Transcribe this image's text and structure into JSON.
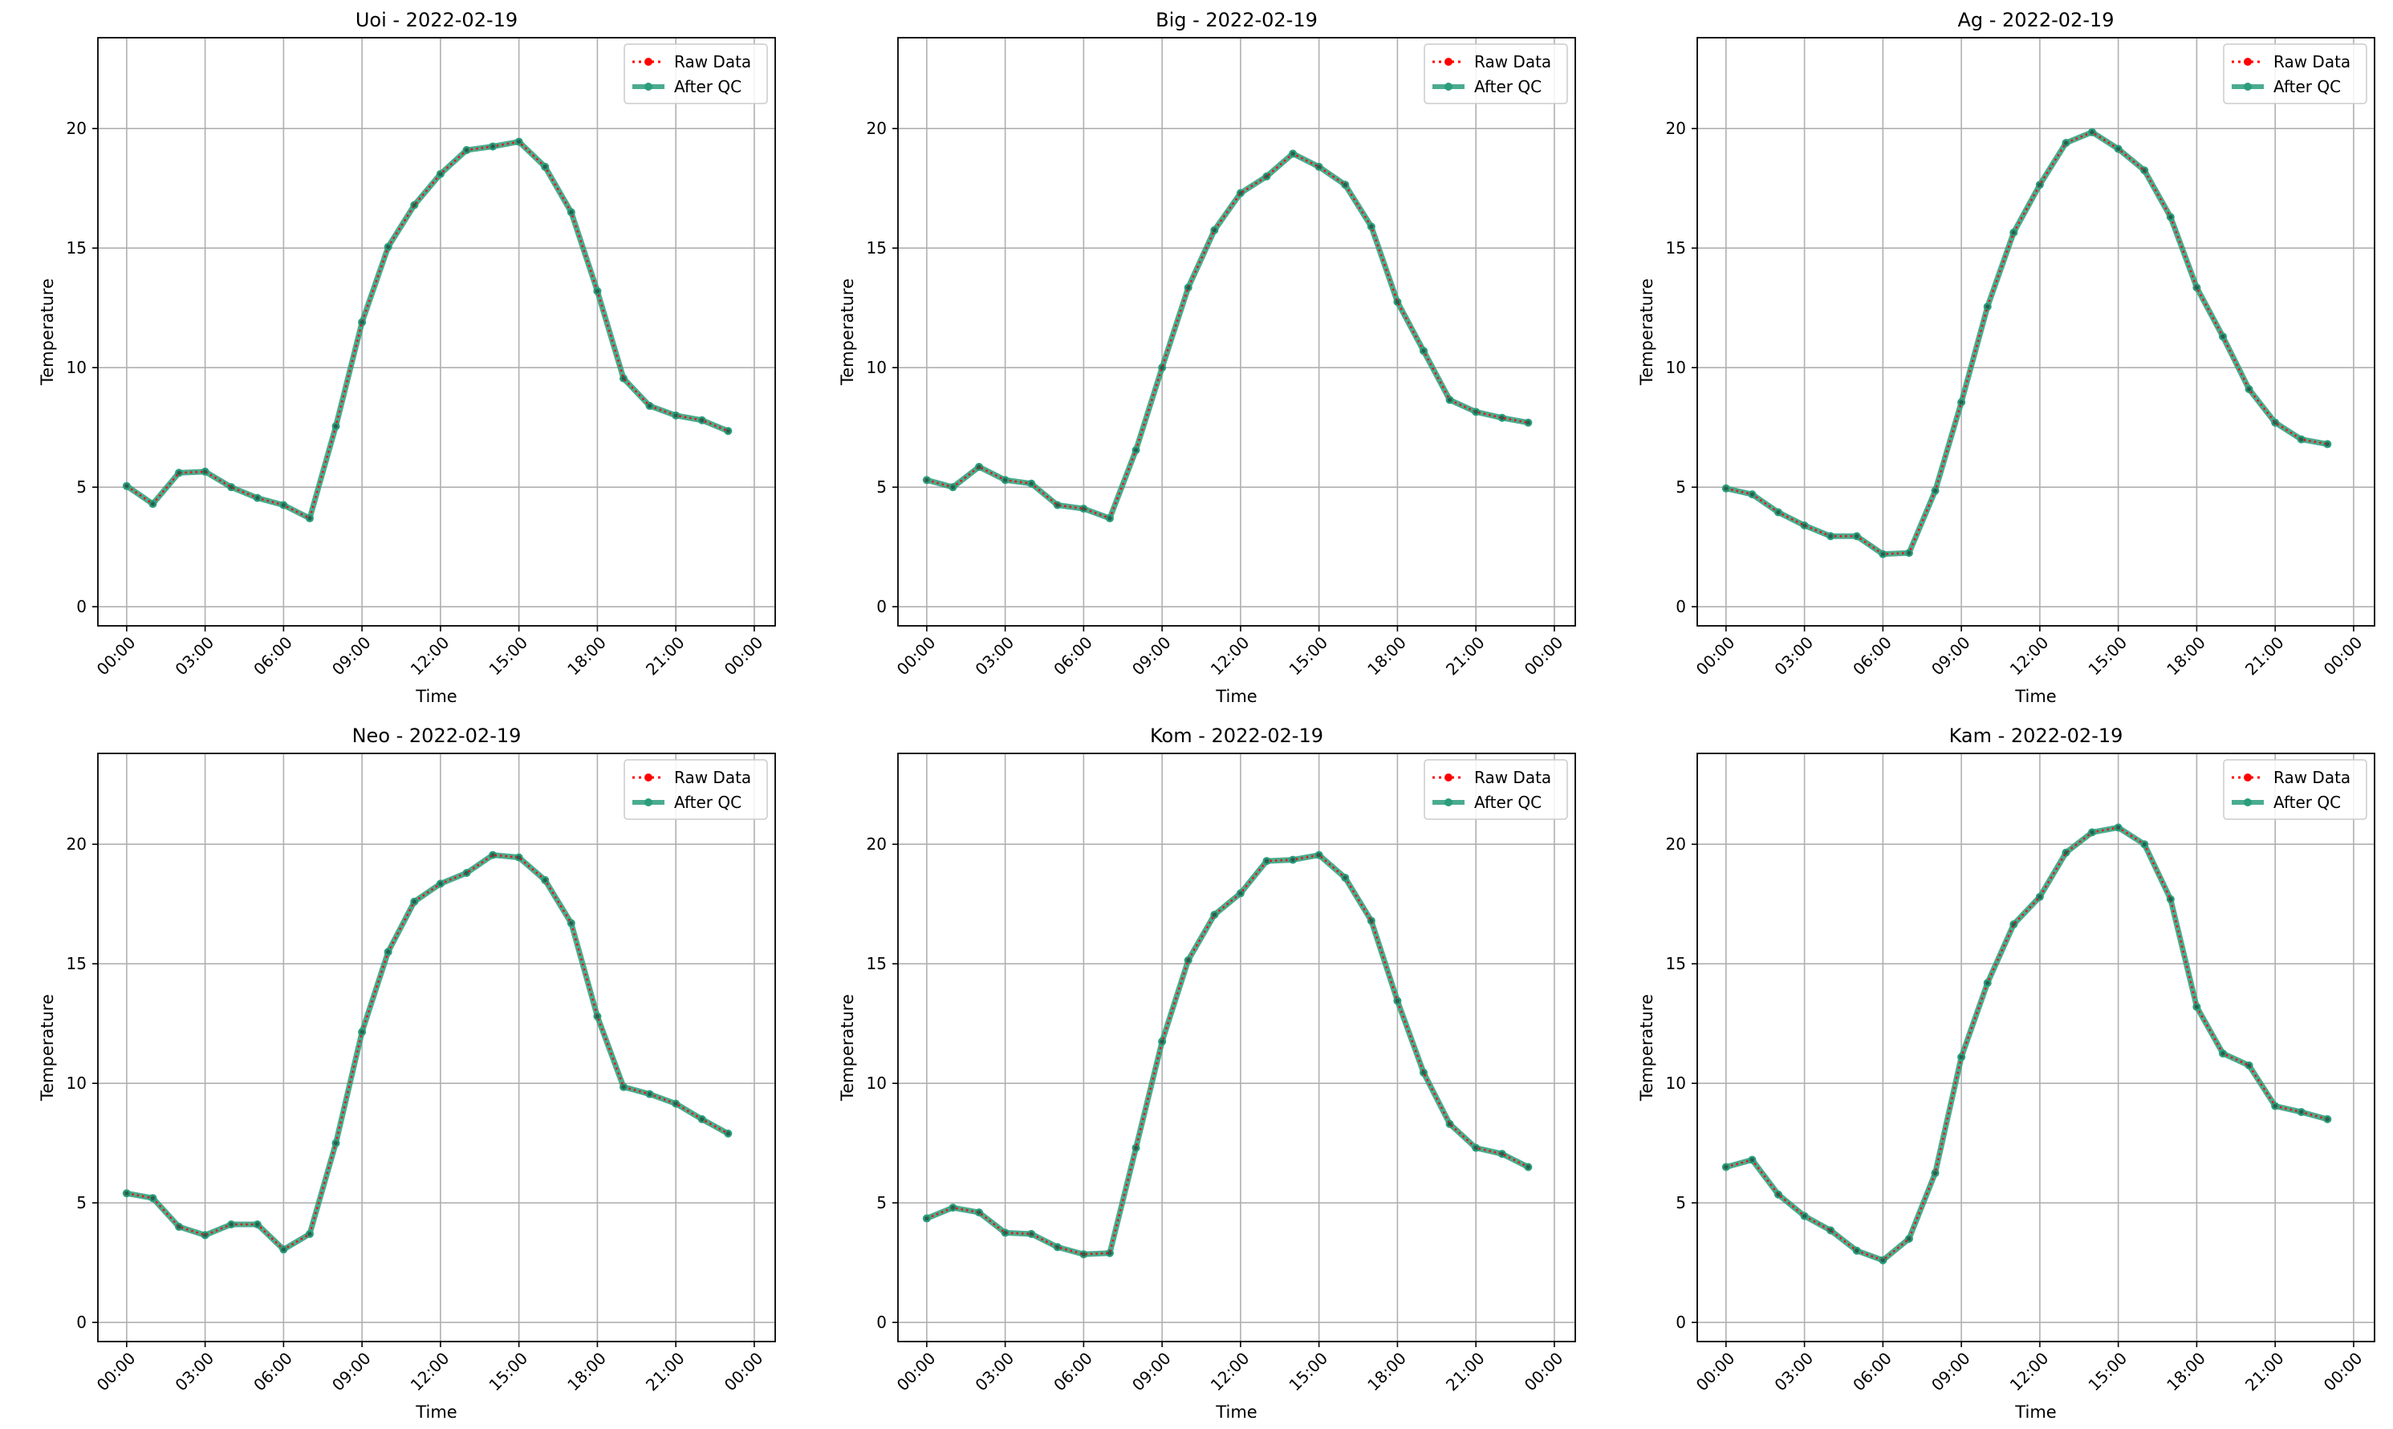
{
  "colors": {
    "raw": "#ff0000",
    "qc": "#2a9d7b",
    "grid": "#b0b0b0",
    "axes": "#000000"
  },
  "chart_data": [
    {
      "type": "line",
      "title": "Uoi - 2022-02-19",
      "xlabel": "Time",
      "ylabel": "Temperature",
      "x_tick_labels": [
        "00:00",
        "03:00",
        "06:00",
        "09:00",
        "12:00",
        "15:00",
        "18:00",
        "21:00",
        "00:00"
      ],
      "x_hours": [
        0,
        1,
        2,
        3,
        4,
        5,
        6,
        7,
        8,
        9,
        10,
        11,
        12,
        13,
        14,
        15,
        16,
        17,
        18,
        19,
        20,
        21,
        22,
        23
      ],
      "ylim": [
        -0.8,
        23.8
      ],
      "yticks": [
        0,
        5,
        10,
        15,
        20
      ],
      "grid": true,
      "legend": "upper right",
      "series": [
        {
          "name": "Raw Data",
          "style": "dotted",
          "values": [
            5.05,
            4.3,
            5.6,
            5.65,
            5.0,
            4.55,
            4.25,
            3.7,
            7.55,
            11.9,
            15.05,
            16.8,
            18.1,
            19.1,
            19.25,
            19.45,
            18.4,
            16.5,
            13.2,
            9.55,
            8.4,
            8.0,
            7.8,
            7.35
          ]
        },
        {
          "name": "After QC",
          "style": "solid",
          "values": [
            5.05,
            4.3,
            5.6,
            5.65,
            5.0,
            4.55,
            4.25,
            3.7,
            7.55,
            11.9,
            15.05,
            16.8,
            18.1,
            19.1,
            19.25,
            19.45,
            18.4,
            16.5,
            13.2,
            9.55,
            8.4,
            8.0,
            7.8,
            7.35
          ]
        }
      ]
    },
    {
      "type": "line",
      "title": "Big - 2022-02-19",
      "xlabel": "Time",
      "ylabel": "Temperature",
      "x_tick_labels": [
        "00:00",
        "03:00",
        "06:00",
        "09:00",
        "12:00",
        "15:00",
        "18:00",
        "21:00",
        "00:00"
      ],
      "x_hours": [
        0,
        1,
        2,
        3,
        4,
        5,
        6,
        7,
        8,
        9,
        10,
        11,
        12,
        13,
        14,
        15,
        16,
        17,
        18,
        19,
        20,
        21,
        22,
        23
      ],
      "ylim": [
        -0.8,
        23.8
      ],
      "yticks": [
        0,
        5,
        10,
        15,
        20
      ],
      "grid": true,
      "legend": "upper right",
      "series": [
        {
          "name": "Raw Data",
          "style": "dotted",
          "values": [
            5.3,
            5.0,
            5.85,
            5.3,
            5.15,
            4.25,
            4.1,
            3.7,
            6.55,
            10.0,
            13.35,
            15.75,
            17.3,
            18.0,
            18.95,
            18.4,
            17.65,
            15.9,
            12.75,
            10.7,
            8.65,
            8.15,
            7.9,
            7.7
          ]
        },
        {
          "name": "After QC",
          "style": "solid",
          "values": [
            5.3,
            5.0,
            5.85,
            5.3,
            5.15,
            4.25,
            4.1,
            3.7,
            6.55,
            10.0,
            13.35,
            15.75,
            17.3,
            18.0,
            18.95,
            18.4,
            17.65,
            15.9,
            12.75,
            10.7,
            8.65,
            8.15,
            7.9,
            7.7
          ]
        }
      ]
    },
    {
      "type": "line",
      "title": "Ag - 2022-02-19",
      "xlabel": "Time",
      "ylabel": "Temperature",
      "x_tick_labels": [
        "00:00",
        "03:00",
        "06:00",
        "09:00",
        "12:00",
        "15:00",
        "18:00",
        "21:00",
        "00:00"
      ],
      "x_hours": [
        0,
        1,
        2,
        3,
        4,
        5,
        6,
        7,
        8,
        9,
        10,
        11,
        12,
        13,
        14,
        15,
        16,
        17,
        18,
        19,
        20,
        21,
        22,
        23
      ],
      "ylim": [
        -0.8,
        23.8
      ],
      "yticks": [
        0,
        5,
        10,
        15,
        20
      ],
      "grid": true,
      "legend": "upper right",
      "series": [
        {
          "name": "Raw Data",
          "style": "dotted",
          "values": [
            4.95,
            4.7,
            3.95,
            3.4,
            2.95,
            2.95,
            2.2,
            2.25,
            4.85,
            8.55,
            12.55,
            15.65,
            17.65,
            19.4,
            19.85,
            19.15,
            18.25,
            16.3,
            13.35,
            11.3,
            9.1,
            7.7,
            7.0,
            6.8
          ]
        },
        {
          "name": "After QC",
          "style": "solid",
          "values": [
            4.95,
            4.7,
            3.95,
            3.4,
            2.95,
            2.95,
            2.2,
            2.25,
            4.85,
            8.55,
            12.55,
            15.65,
            17.65,
            19.4,
            19.85,
            19.15,
            18.25,
            16.3,
            13.35,
            11.3,
            9.1,
            7.7,
            7.0,
            6.8
          ]
        }
      ]
    },
    {
      "type": "line",
      "title": "Neo - 2022-02-19",
      "xlabel": "Time",
      "ylabel": "Temperature",
      "x_tick_labels": [
        "00:00",
        "03:00",
        "06:00",
        "09:00",
        "12:00",
        "15:00",
        "18:00",
        "21:00",
        "00:00"
      ],
      "x_hours": [
        0,
        1,
        2,
        3,
        4,
        5,
        6,
        7,
        8,
        9,
        10,
        11,
        12,
        13,
        14,
        15,
        16,
        17,
        18,
        19,
        20,
        21,
        22,
        23
      ],
      "ylim": [
        -0.8,
        23.8
      ],
      "yticks": [
        0,
        5,
        10,
        15,
        20
      ],
      "grid": true,
      "legend": "upper right",
      "series": [
        {
          "name": "Raw Data",
          "style": "dotted",
          "values": [
            5.4,
            5.2,
            4.0,
            3.65,
            4.1,
            4.1,
            3.05,
            3.7,
            7.5,
            12.15,
            15.5,
            17.6,
            18.35,
            18.8,
            19.55,
            19.45,
            18.5,
            16.7,
            12.8,
            9.85,
            9.55,
            9.15,
            8.5,
            7.9
          ]
        },
        {
          "name": "After QC",
          "style": "solid",
          "values": [
            5.4,
            5.2,
            4.0,
            3.65,
            4.1,
            4.1,
            3.05,
            3.7,
            7.5,
            12.15,
            15.5,
            17.6,
            18.35,
            18.8,
            19.55,
            19.45,
            18.5,
            16.7,
            12.8,
            9.85,
            9.55,
            9.15,
            8.5,
            7.9
          ]
        }
      ]
    },
    {
      "type": "line",
      "title": "Kom - 2022-02-19",
      "xlabel": "Time",
      "ylabel": "Temperature",
      "x_tick_labels": [
        "00:00",
        "03:00",
        "06:00",
        "09:00",
        "12:00",
        "15:00",
        "18:00",
        "21:00",
        "00:00"
      ],
      "x_hours": [
        0,
        1,
        2,
        3,
        4,
        5,
        6,
        7,
        8,
        9,
        10,
        11,
        12,
        13,
        14,
        15,
        16,
        17,
        18,
        19,
        20,
        21,
        22,
        23
      ],
      "ylim": [
        -0.8,
        23.8
      ],
      "yticks": [
        0,
        5,
        10,
        15,
        20
      ],
      "grid": true,
      "legend": "upper right",
      "series": [
        {
          "name": "Raw Data",
          "style": "dotted",
          "values": [
            4.35,
            4.8,
            4.6,
            3.75,
            3.7,
            3.15,
            2.85,
            2.9,
            7.3,
            11.75,
            15.15,
            17.05,
            17.95,
            19.3,
            19.35,
            19.55,
            18.6,
            16.8,
            13.45,
            10.45,
            8.3,
            7.3,
            7.05,
            6.5
          ]
        },
        {
          "name": "After QC",
          "style": "solid",
          "values": [
            4.35,
            4.8,
            4.6,
            3.75,
            3.7,
            3.15,
            2.85,
            2.9,
            7.3,
            11.75,
            15.15,
            17.05,
            17.95,
            19.3,
            19.35,
            19.55,
            18.6,
            16.8,
            13.45,
            10.45,
            8.3,
            7.3,
            7.05,
            6.5
          ]
        }
      ]
    },
    {
      "type": "line",
      "title": "Kam - 2022-02-19",
      "xlabel": "Time",
      "ylabel": "Temperature",
      "x_tick_labels": [
        "00:00",
        "03:00",
        "06:00",
        "09:00",
        "12:00",
        "15:00",
        "18:00",
        "21:00",
        "00:00"
      ],
      "x_hours": [
        0,
        1,
        2,
        3,
        4,
        5,
        6,
        7,
        8,
        9,
        10,
        11,
        12,
        13,
        14,
        15,
        16,
        17,
        18,
        19,
        20,
        21,
        22,
        23
      ],
      "ylim": [
        -0.8,
        23.8
      ],
      "yticks": [
        0,
        5,
        10,
        15,
        20
      ],
      "grid": true,
      "legend": "upper right",
      "series": [
        {
          "name": "Raw Data",
          "style": "dotted",
          "values": [
            6.5,
            6.8,
            5.35,
            4.45,
            3.85,
            3.0,
            2.6,
            3.5,
            6.25,
            11.1,
            14.2,
            16.65,
            17.8,
            19.65,
            20.5,
            20.7,
            20.0,
            17.7,
            13.2,
            11.25,
            10.75,
            9.05,
            8.8,
            8.5
          ]
        },
        {
          "name": "After QC",
          "style": "solid",
          "values": [
            6.5,
            6.8,
            5.35,
            4.45,
            3.85,
            3.0,
            2.6,
            3.5,
            6.25,
            11.1,
            14.2,
            16.65,
            17.8,
            19.65,
            20.5,
            20.7,
            20.0,
            17.7,
            13.2,
            11.25,
            10.75,
            9.05,
            8.8,
            8.5
          ]
        }
      ]
    }
  ]
}
